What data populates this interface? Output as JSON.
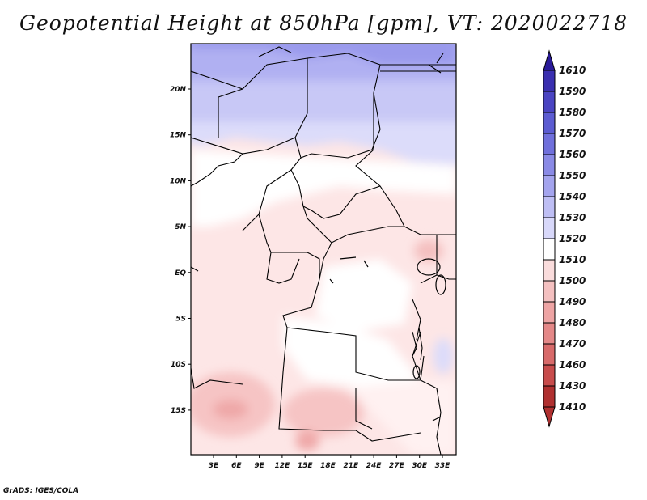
{
  "title": "Geopotential Height at 850hPa [gpm], VT: 2020022718",
  "credit": "GrADS: IGES/COLA",
  "map": {
    "lat_labels": [
      "20N",
      "15N",
      "10N",
      "5N",
      "EQ",
      "5S",
      "10S",
      "15S"
    ],
    "lon_labels": [
      "3E",
      "6E",
      "9E",
      "12E",
      "15E",
      "18E",
      "21E",
      "24E",
      "27E",
      "30E",
      "33E"
    ]
  },
  "colorbar": {
    "levels": [
      "1610",
      "1590",
      "1580",
      "1570",
      "1560",
      "1550",
      "1540",
      "1530",
      "1520",
      "1510",
      "1500",
      "1490",
      "1480",
      "1470",
      "1460",
      "1430",
      "1410"
    ],
    "colors": [
      "#2a1a9a",
      "#3a2fb0",
      "#4a44c2",
      "#5c5cd2",
      "#7070dc",
      "#8a8ae6",
      "#a4a4ee",
      "#bebef4",
      "#d8d8fa",
      "#ffffff",
      "#fadcdc",
      "#f4c0c0",
      "#eea4a4",
      "#e48888",
      "#d86a6a",
      "#c84c4c",
      "#b03030"
    ]
  }
}
